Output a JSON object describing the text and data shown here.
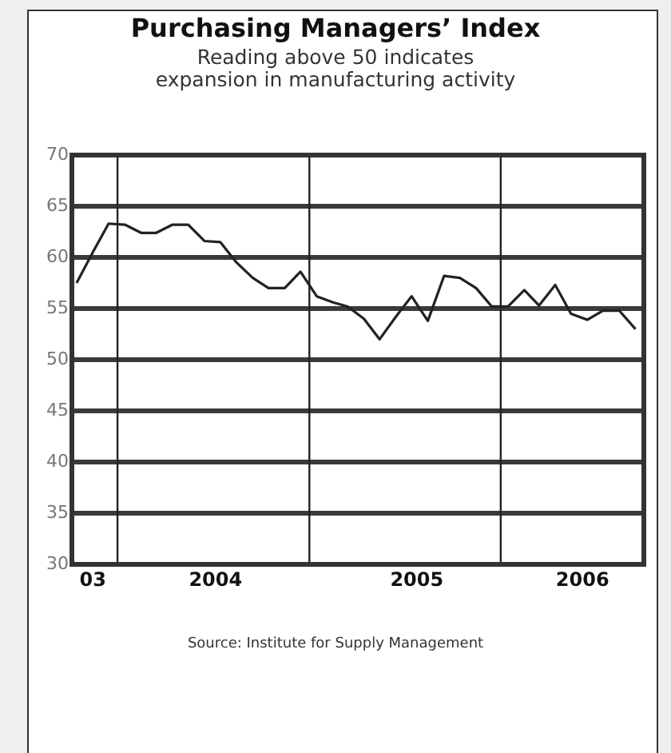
{
  "chart_data": {
    "type": "line",
    "title": "Purchasing Managers’ Index",
    "subtitle": "Reading above 50 indicates expansion in manufacturing activity",
    "annotations": [
      "Source: Institute for Supply Management"
    ],
    "x": [
      "2003-10-15",
      "2003-11-15",
      "2003-12-15",
      "2004-01-15",
      "2004-02-15",
      "2004-03-15",
      "2004-04-15",
      "2004-05-15",
      "2004-06-15",
      "2004-07-15",
      "2004-08-15",
      "2004-09-15",
      "2004-10-15",
      "2004-11-15",
      "2004-12-15",
      "2005-01-15",
      "2005-02-15",
      "2005-03-15",
      "2005-04-15",
      "2005-05-15",
      "2005-06-15",
      "2005-07-15",
      "2005-08-15",
      "2005-09-15",
      "2005-10-15",
      "2005-11-15",
      "2005-12-15",
      "2006-01-15",
      "2006-02-15",
      "2006-03-15",
      "2006-04-15",
      "2006-05-15",
      "2006-06-15",
      "2006-07-15",
      "2006-08-15",
      "2006-09-15"
    ],
    "values": [
      57.5,
      60.5,
      63.3,
      63.2,
      62.4,
      62.4,
      63.2,
      63.2,
      61.6,
      61.5,
      59.5,
      58,
      57,
      57,
      58.6,
      56.2,
      55.6,
      55.2,
      54,
      52,
      54.2,
      56.2,
      53.8,
      58.2,
      58,
      57,
      55.2,
      55.2,
      56.8,
      55.3,
      57.3,
      54.5,
      53.9,
      54.8,
      54.8,
      53
    ],
    "color": "#222222",
    "xlim": [
      "2003-10-06",
      "2006-10-01"
    ],
    "xticks": [
      {
        "value": "2003-11-15",
        "label": "03"
      },
      {
        "value": "2004-07-06",
        "label": "2004"
      },
      {
        "value": "2005-07-25",
        "label": "2005"
      },
      {
        "value": "2006-06-06",
        "label": "2006"
      }
    ],
    "ylim": [
      30,
      70
    ],
    "yticks": [
      30,
      35,
      40,
      45,
      50,
      55,
      60,
      65,
      70
    ],
    "grid": "y",
    "ref_lines": [
      {
        "axis": "x",
        "value": "2004-01-01"
      },
      {
        "axis": "x",
        "value": "2005-01-01"
      },
      {
        "axis": "x",
        "value": "2006-01-01"
      }
    ]
  }
}
